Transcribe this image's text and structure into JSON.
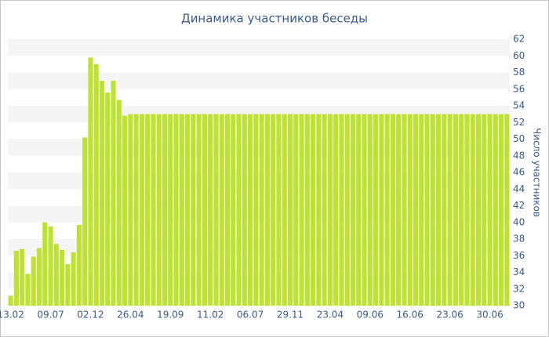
{
  "chart_data": {
    "type": "bar",
    "title": "Динамика участников беседы",
    "y_label": "Число участников",
    "categories": [
      "13.02",
      null,
      null,
      null,
      null,
      null,
      null,
      "09.07",
      null,
      null,
      null,
      null,
      null,
      null,
      "02.12",
      null,
      null,
      null,
      null,
      null,
      null,
      "26.04",
      null,
      null,
      null,
      null,
      null,
      null,
      "19.09",
      null,
      null,
      null,
      null,
      null,
      null,
      "11.02",
      null,
      null,
      null,
      null,
      null,
      null,
      "06.07",
      null,
      null,
      null,
      null,
      null,
      null,
      "29.11",
      null,
      null,
      null,
      null,
      null,
      null,
      "23.04",
      null,
      null,
      null,
      null,
      null,
      null,
      "09.06",
      null,
      null,
      null,
      null,
      null,
      null,
      "16.06",
      null,
      null,
      null,
      null,
      null,
      null,
      "23.06",
      null,
      null,
      null,
      null,
      null,
      null,
      "30.06",
      null,
      null,
      null
    ],
    "values": [
      31.2,
      36.6,
      36.8,
      33.8,
      35.9,
      36.9,
      40,
      39.5,
      37.4,
      36.7,
      35,
      36.4,
      39.7,
      50.2,
      59.8,
      59,
      57,
      55.6,
      57,
      54.7,
      52.8,
      53,
      53,
      53,
      53,
      53,
      53,
      53,
      53,
      53,
      53,
      53,
      53,
      53,
      53,
      53,
      53,
      53,
      53,
      53,
      53,
      53,
      53,
      53,
      53,
      53,
      53,
      53,
      53,
      53,
      53,
      53,
      53,
      53,
      53,
      53,
      53,
      53,
      53,
      53,
      53,
      53,
      53,
      53,
      53,
      53,
      53,
      53,
      53,
      53,
      53,
      53,
      53,
      53,
      53,
      53,
      53,
      53,
      53,
      53,
      53,
      53,
      53,
      53,
      53,
      53,
      53,
      53
    ],
    "color": "#bde22f",
    "ylim": [
      30,
      62
    ],
    "yticks": [
      30,
      32,
      34,
      36,
      38,
      40,
      42,
      44,
      46,
      48,
      50,
      52,
      54,
      56,
      58,
      60,
      62
    ],
    "grid": true
  }
}
